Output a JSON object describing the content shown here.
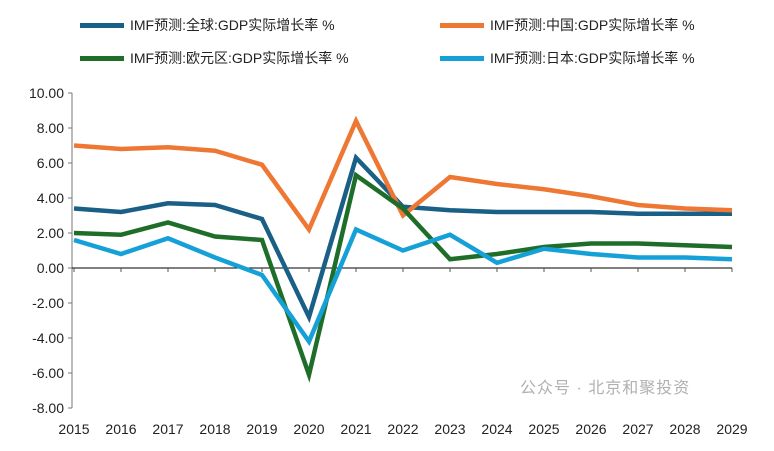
{
  "chart_data": {
    "type": "line",
    "title": "",
    "xlabel": "",
    "ylabel": "",
    "x": [
      2015,
      2016,
      2017,
      2018,
      2019,
      2020,
      2021,
      2022,
      2023,
      2024,
      2025,
      2026,
      2027,
      2028,
      2029
    ],
    "ylim": [
      -8,
      10
    ],
    "yticks": [
      "10.00",
      "8.00",
      "6.00",
      "4.00",
      "2.00",
      "0.00",
      "-2.00",
      "-4.00",
      "-6.00",
      "-8.00"
    ],
    "ytick_values": [
      10,
      8,
      6,
      4,
      2,
      0,
      -2,
      -4,
      -6,
      -8
    ],
    "grid": false,
    "legend_placement": "top",
    "series": [
      {
        "name": "IMF预测:全球:GDP实际增长率 %",
        "color": "#1a5f86",
        "values": [
          3.4,
          3.2,
          3.7,
          3.6,
          2.8,
          -2.8,
          6.3,
          3.5,
          3.3,
          3.2,
          3.2,
          3.2,
          3.1,
          3.1,
          3.1
        ]
      },
      {
        "name": "IMF预测:中国:GDP实际增长率 %",
        "color": "#ee7733",
        "values": [
          7.0,
          6.8,
          6.9,
          6.7,
          5.9,
          2.2,
          8.4,
          3.0,
          5.2,
          4.8,
          4.5,
          4.1,
          3.6,
          3.4,
          3.3
        ]
      },
      {
        "name": "IMF预测:欧元区:GDP实际增长率 %",
        "color": "#1e6e2a",
        "values": [
          2.0,
          1.9,
          2.6,
          1.8,
          1.6,
          -6.1,
          5.3,
          3.4,
          0.5,
          0.8,
          1.2,
          1.4,
          1.4,
          1.3,
          1.2
        ]
      },
      {
        "name": "IMF预测:日本:GDP实际增长率 %",
        "color": "#16a0d8",
        "values": [
          1.6,
          0.8,
          1.7,
          0.6,
          -0.4,
          -4.2,
          2.2,
          1.0,
          1.9,
          0.3,
          1.1,
          0.8,
          0.6,
          0.6,
          0.5
        ]
      }
    ]
  },
  "watermark": "公众号 · 北京和聚投资"
}
